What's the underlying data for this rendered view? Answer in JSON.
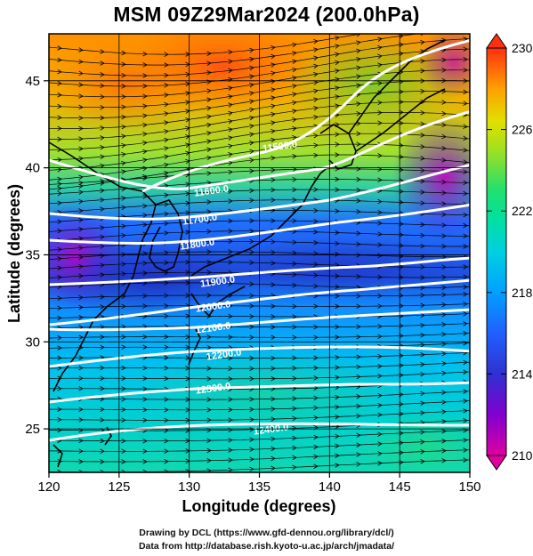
{
  "title": "MSM 09Z29Mar2024 (200.0hPa)",
  "x_axis": {
    "label": "Longitude (degrees)",
    "ticks": [
      "120",
      "125",
      "130",
      "135",
      "140",
      "145",
      "150"
    ],
    "range": [
      120,
      150
    ]
  },
  "y_axis": {
    "label": "Latitude  (degrees)",
    "ticks": [
      "25",
      "30",
      "35",
      "40",
      "45"
    ],
    "range": [
      22.5,
      47.7
    ]
  },
  "colorbar": {
    "ticks": [
      "210",
      "214",
      "218",
      "222",
      "226",
      "230"
    ],
    "range": [
      210,
      230
    ],
    "colors": [
      "#e000a0",
      "#8000d0",
      "#3030d0",
      "#2060ff",
      "#00c0ff",
      "#00e0c0",
      "#20e070",
      "#80e020",
      "#e0e000",
      "#ffc000",
      "#ff8000",
      "#ff3010"
    ]
  },
  "contours": [
    {
      "label": "11500.0"
    },
    {
      "label": "11600.0"
    },
    {
      "label": "11700.0"
    },
    {
      "label": "11800.0"
    },
    {
      "label": "11900.0"
    },
    {
      "label": "12000.0"
    },
    {
      "label": "12100.0"
    },
    {
      "label": "12200.0"
    },
    {
      "label": "12300.0"
    },
    {
      "label": "12400.0"
    }
  ],
  "credits": {
    "line1": "Drawing by DCL (https://www.gfd-dennou.org/library/dcl/)",
    "line2": "Data from http://database.rish.kyoto-u.ac.jp/arch/jmadata/"
  }
}
